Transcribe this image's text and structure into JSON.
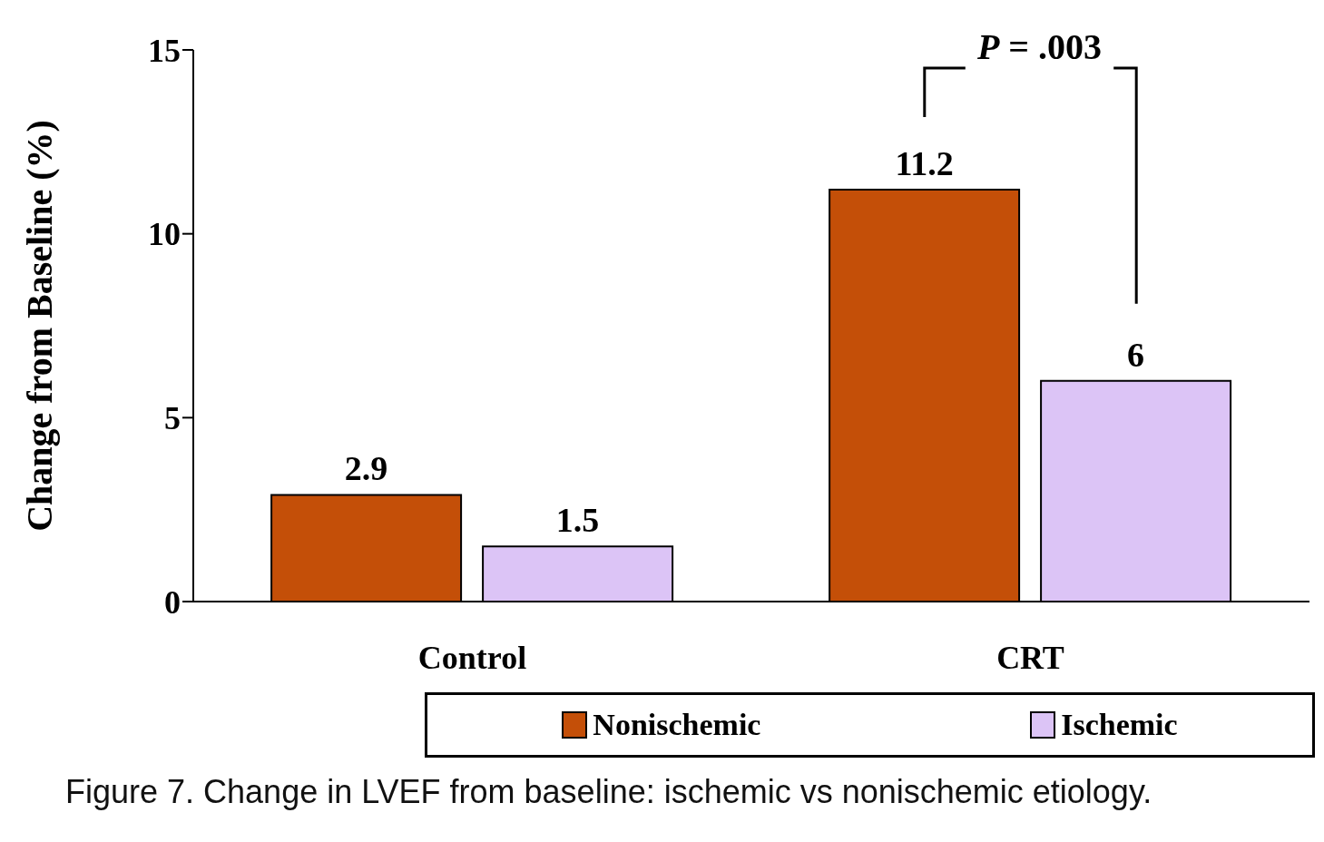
{
  "chart_data": {
    "type": "bar",
    "categories": [
      "Control",
      "CRT"
    ],
    "series": [
      {
        "name": "Nonischemic",
        "color": "#c44f08",
        "values": [
          2.9,
          11.2
        ]
      },
      {
        "name": "Ischemic",
        "color": "#dcc4f6",
        "values": [
          1.5,
          6
        ]
      }
    ],
    "ylabel": "Change from Baseline (%)",
    "ylim": [
      0,
      15
    ],
    "yticks": [
      0,
      5,
      10,
      15
    ],
    "grid": false,
    "data_labels": true,
    "legend": "bottom",
    "annotations": [
      "P = .003",
      "Figure 7. Change in LVEF from baseline: ischemic vs nonischemic etiology."
    ]
  }
}
